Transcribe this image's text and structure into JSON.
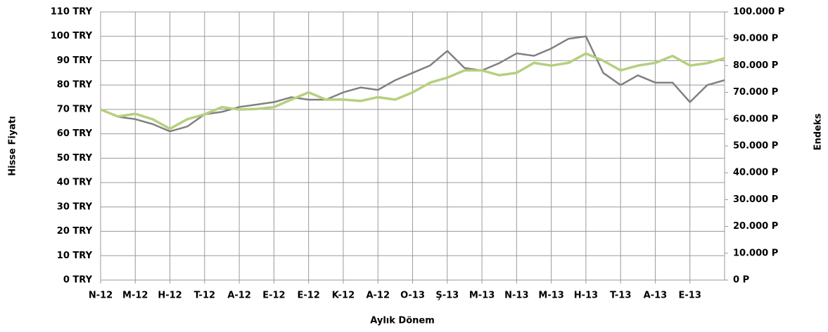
{
  "chart_data": {
    "type": "line",
    "xlabel": "Aylık Dönem",
    "ylabel": "Hisse Fiyatı",
    "y2label": "Endeks",
    "x": [
      0,
      0.5,
      1,
      1.5,
      2,
      2.5,
      3,
      3.5,
      4,
      4.5,
      5,
      5.5,
      6,
      6.5,
      7,
      7.5,
      8,
      8.5,
      9,
      9.5,
      10,
      10.5,
      11,
      11.5,
      12,
      12.5,
      13,
      13.5,
      14,
      14.5,
      15,
      15.5,
      16,
      16.5,
      17,
      17.5,
      18
    ],
    "xlim": [
      0,
      18
    ],
    "xticks": [
      {
        "value": 0,
        "label": "N-12"
      },
      {
        "value": 1,
        "label": "M-12"
      },
      {
        "value": 2,
        "label": "H-12"
      },
      {
        "value": 3,
        "label": "T-12"
      },
      {
        "value": 4,
        "label": "A-12"
      },
      {
        "value": 5,
        "label": "E-12"
      },
      {
        "value": 6,
        "label": "E-12"
      },
      {
        "value": 7,
        "label": "K-12"
      },
      {
        "value": 8,
        "label": "A-12"
      },
      {
        "value": 9,
        "label": "O-13"
      },
      {
        "value": 10,
        "label": "Ş-13"
      },
      {
        "value": 11,
        "label": "M-13"
      },
      {
        "value": 12,
        "label": "N-13"
      },
      {
        "value": 13,
        "label": "M-13"
      },
      {
        "value": 14,
        "label": "H-13"
      },
      {
        "value": 15,
        "label": "T-13"
      },
      {
        "value": 16,
        "label": "A-13"
      },
      {
        "value": 17,
        "label": "E-13"
      }
    ],
    "ylim": [
      0,
      110
    ],
    "yticks": [
      {
        "value": 0,
        "label": "0 TRY"
      },
      {
        "value": 10,
        "label": "10 TRY"
      },
      {
        "value": 20,
        "label": "20 TRY"
      },
      {
        "value": 30,
        "label": "30 TRY"
      },
      {
        "value": 40,
        "label": "40 TRY"
      },
      {
        "value": 50,
        "label": "50 TRY"
      },
      {
        "value": 60,
        "label": "60 TRY"
      },
      {
        "value": 70,
        "label": "70 TRY"
      },
      {
        "value": 80,
        "label": "80 TRY"
      },
      {
        "value": 90,
        "label": "90 TRY"
      },
      {
        "value": 100,
        "label": "100 TRY"
      },
      {
        "value": 110,
        "label": "110 TRY"
      }
    ],
    "y2lim": [
      0,
      100000
    ],
    "y2ticks": [
      {
        "value": 0,
        "label": "0 P"
      },
      {
        "value": 10000,
        "label": "10.000 P"
      },
      {
        "value": 20000,
        "label": "20.000 P"
      },
      {
        "value": 30000,
        "label": "30.000 P"
      },
      {
        "value": 40000,
        "label": "40.000 P"
      },
      {
        "value": 50000,
        "label": "50.000 P"
      },
      {
        "value": 60000,
        "label": "60.000 P"
      },
      {
        "value": 70000,
        "label": "70.000 P"
      },
      {
        "value": 80000,
        "label": "80.000 P"
      },
      {
        "value": 90000,
        "label": "90.000 P"
      },
      {
        "value": 100000,
        "label": "100.000 P"
      }
    ],
    "grid": true,
    "series": [
      {
        "color": "#808080",
        "width": 2.5,
        "values": [
          70,
          67,
          66,
          64,
          61,
          63,
          68,
          69,
          71,
          72,
          73,
          75,
          74,
          74,
          77,
          79,
          78,
          82,
          85,
          88,
          94,
          87,
          86,
          89,
          93,
          92,
          95,
          99,
          100,
          85,
          80,
          84,
          81,
          81,
          73,
          80,
          82
        ]
      },
      {
        "color": "#b5d07e",
        "width": 3.5,
        "axis": "y2",
        "values": [
          63600,
          61000,
          62000,
          60000,
          56400,
          60000,
          61800,
          64500,
          63600,
          63800,
          64500,
          67300,
          70000,
          67300,
          67300,
          66800,
          68200,
          67300,
          70000,
          73600,
          75500,
          78200,
          78200,
          76400,
          77300,
          81000,
          80000,
          81000,
          84500,
          81800,
          78200,
          80000,
          81000,
          83600,
          80000,
          80900,
          82700
        ]
      }
    ]
  }
}
